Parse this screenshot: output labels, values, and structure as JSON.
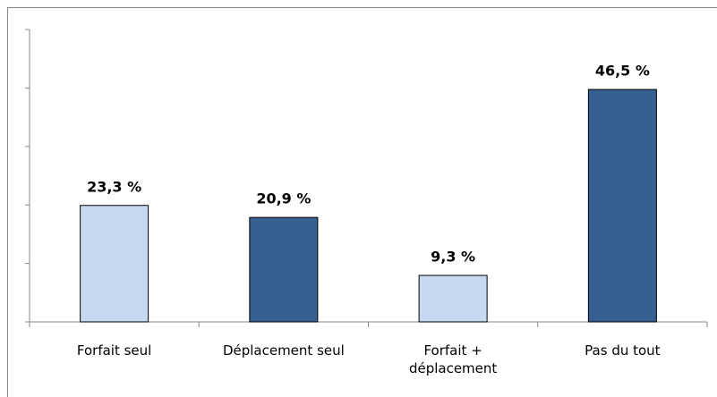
{
  "chart_data": {
    "type": "bar",
    "categories": [
      "Forfait seul",
      "Déplacement seul",
      "Forfait + déplacement",
      "Pas du tout"
    ],
    "values": [
      23.3,
      20.9,
      9.3,
      46.5
    ],
    "value_labels": [
      "23,3 %",
      "20,9 %",
      "9,3 %",
      "46,5 %"
    ],
    "colors": [
      "#c6d9f1",
      "#366092",
      "#c6d9f1",
      "#366092"
    ],
    "ylim": [
      0,
      58.5
    ],
    "yticks": [
      0,
      11.7,
      23.4,
      35.1,
      46.8,
      58.5
    ],
    "grid": false
  }
}
